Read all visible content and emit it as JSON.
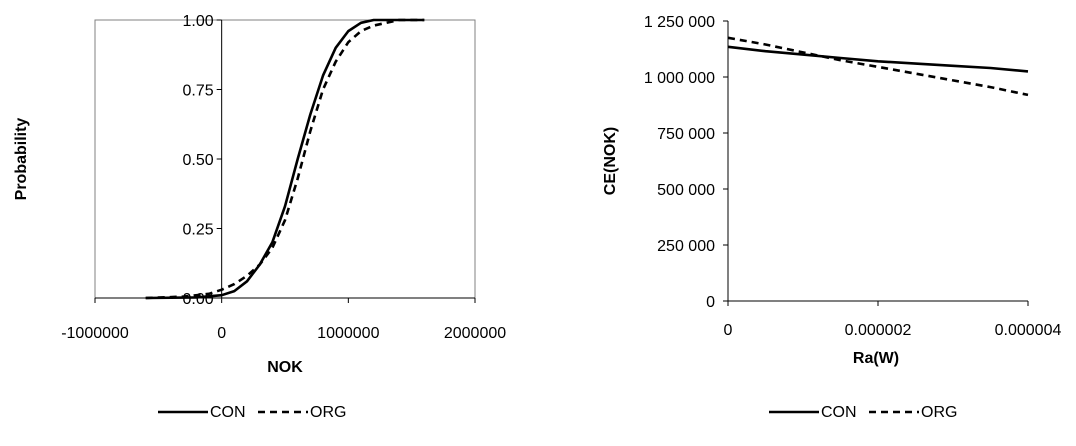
{
  "chart_data": [
    {
      "type": "line",
      "title": "",
      "xlabel": "NOK",
      "ylabel": "Probability",
      "xlim": [
        -1000000,
        2000000
      ],
      "ylim": [
        0,
        1
      ],
      "grid": false,
      "legend_position": "bottom",
      "x_ticks": [
        -1000000,
        0,
        1000000,
        2000000
      ],
      "x_tick_labels": [
        "-1000000",
        "0",
        "1000000",
        "2000000"
      ],
      "y_ticks": [
        0,
        0.25,
        0.5,
        0.75,
        1
      ],
      "y_tick_labels": [
        "0.00",
        "0.25",
        "0.50",
        "0.75",
        "1.00"
      ],
      "series": [
        {
          "name": "CON",
          "style": "solid",
          "x": [
            -600000,
            -200000,
            0,
            100000,
            200000,
            300000,
            400000,
            500000,
            600000,
            700000,
            800000,
            900000,
            1000000,
            1100000,
            1200000,
            1600000
          ],
          "y": [
            0,
            0.002,
            0.01,
            0.025,
            0.06,
            0.12,
            0.2,
            0.33,
            0.5,
            0.66,
            0.8,
            0.9,
            0.96,
            0.99,
            1,
            1
          ]
        },
        {
          "name": "ORG",
          "style": "dashed",
          "x": [
            -600000,
            -300000,
            -100000,
            0,
            100000,
            200000,
            300000,
            400000,
            500000,
            600000,
            700000,
            800000,
            900000,
            1000000,
            1100000,
            1200000,
            1400000,
            1600000
          ],
          "y": [
            0,
            0.005,
            0.015,
            0.03,
            0.05,
            0.08,
            0.12,
            0.18,
            0.28,
            0.43,
            0.6,
            0.75,
            0.85,
            0.92,
            0.96,
            0.98,
            1,
            1
          ]
        }
      ]
    },
    {
      "type": "line",
      "title": "",
      "xlabel": "Ra(W)",
      "ylabel": "CE(NOK)",
      "xlim": [
        0,
        4e-06
      ],
      "ylim": [
        0,
        1250000
      ],
      "grid": false,
      "legend_position": "bottom",
      "x_ticks": [
        0,
        2e-06,
        4e-06
      ],
      "x_tick_labels": [
        "0",
        "0.000002",
        "0.000004"
      ],
      "y_ticks": [
        0,
        250000,
        500000,
        750000,
        1000000,
        1250000
      ],
      "y_tick_labels": [
        "0",
        "250 000",
        "500 000",
        "750 000",
        "1 000 000",
        "1 250 000"
      ],
      "series": [
        {
          "name": "CON",
          "style": "solid",
          "x": [
            0,
            5e-07,
            1e-06,
            1.5e-06,
            2e-06,
            2.5e-06,
            3e-06,
            3.5e-06,
            4e-06
          ],
          "y": [
            1135000,
            1115000,
            1100000,
            1085000,
            1070000,
            1060000,
            1050000,
            1040000,
            1025000
          ]
        },
        {
          "name": "ORG",
          "style": "dashed",
          "x": [
            0,
            5e-07,
            1e-06,
            1.5e-06,
            2e-06,
            2.5e-06,
            3e-06,
            3.5e-06,
            4e-06
          ],
          "y": [
            1175000,
            1145000,
            1110000,
            1075000,
            1045000,
            1015000,
            985000,
            955000,
            920000
          ]
        }
      ]
    }
  ]
}
